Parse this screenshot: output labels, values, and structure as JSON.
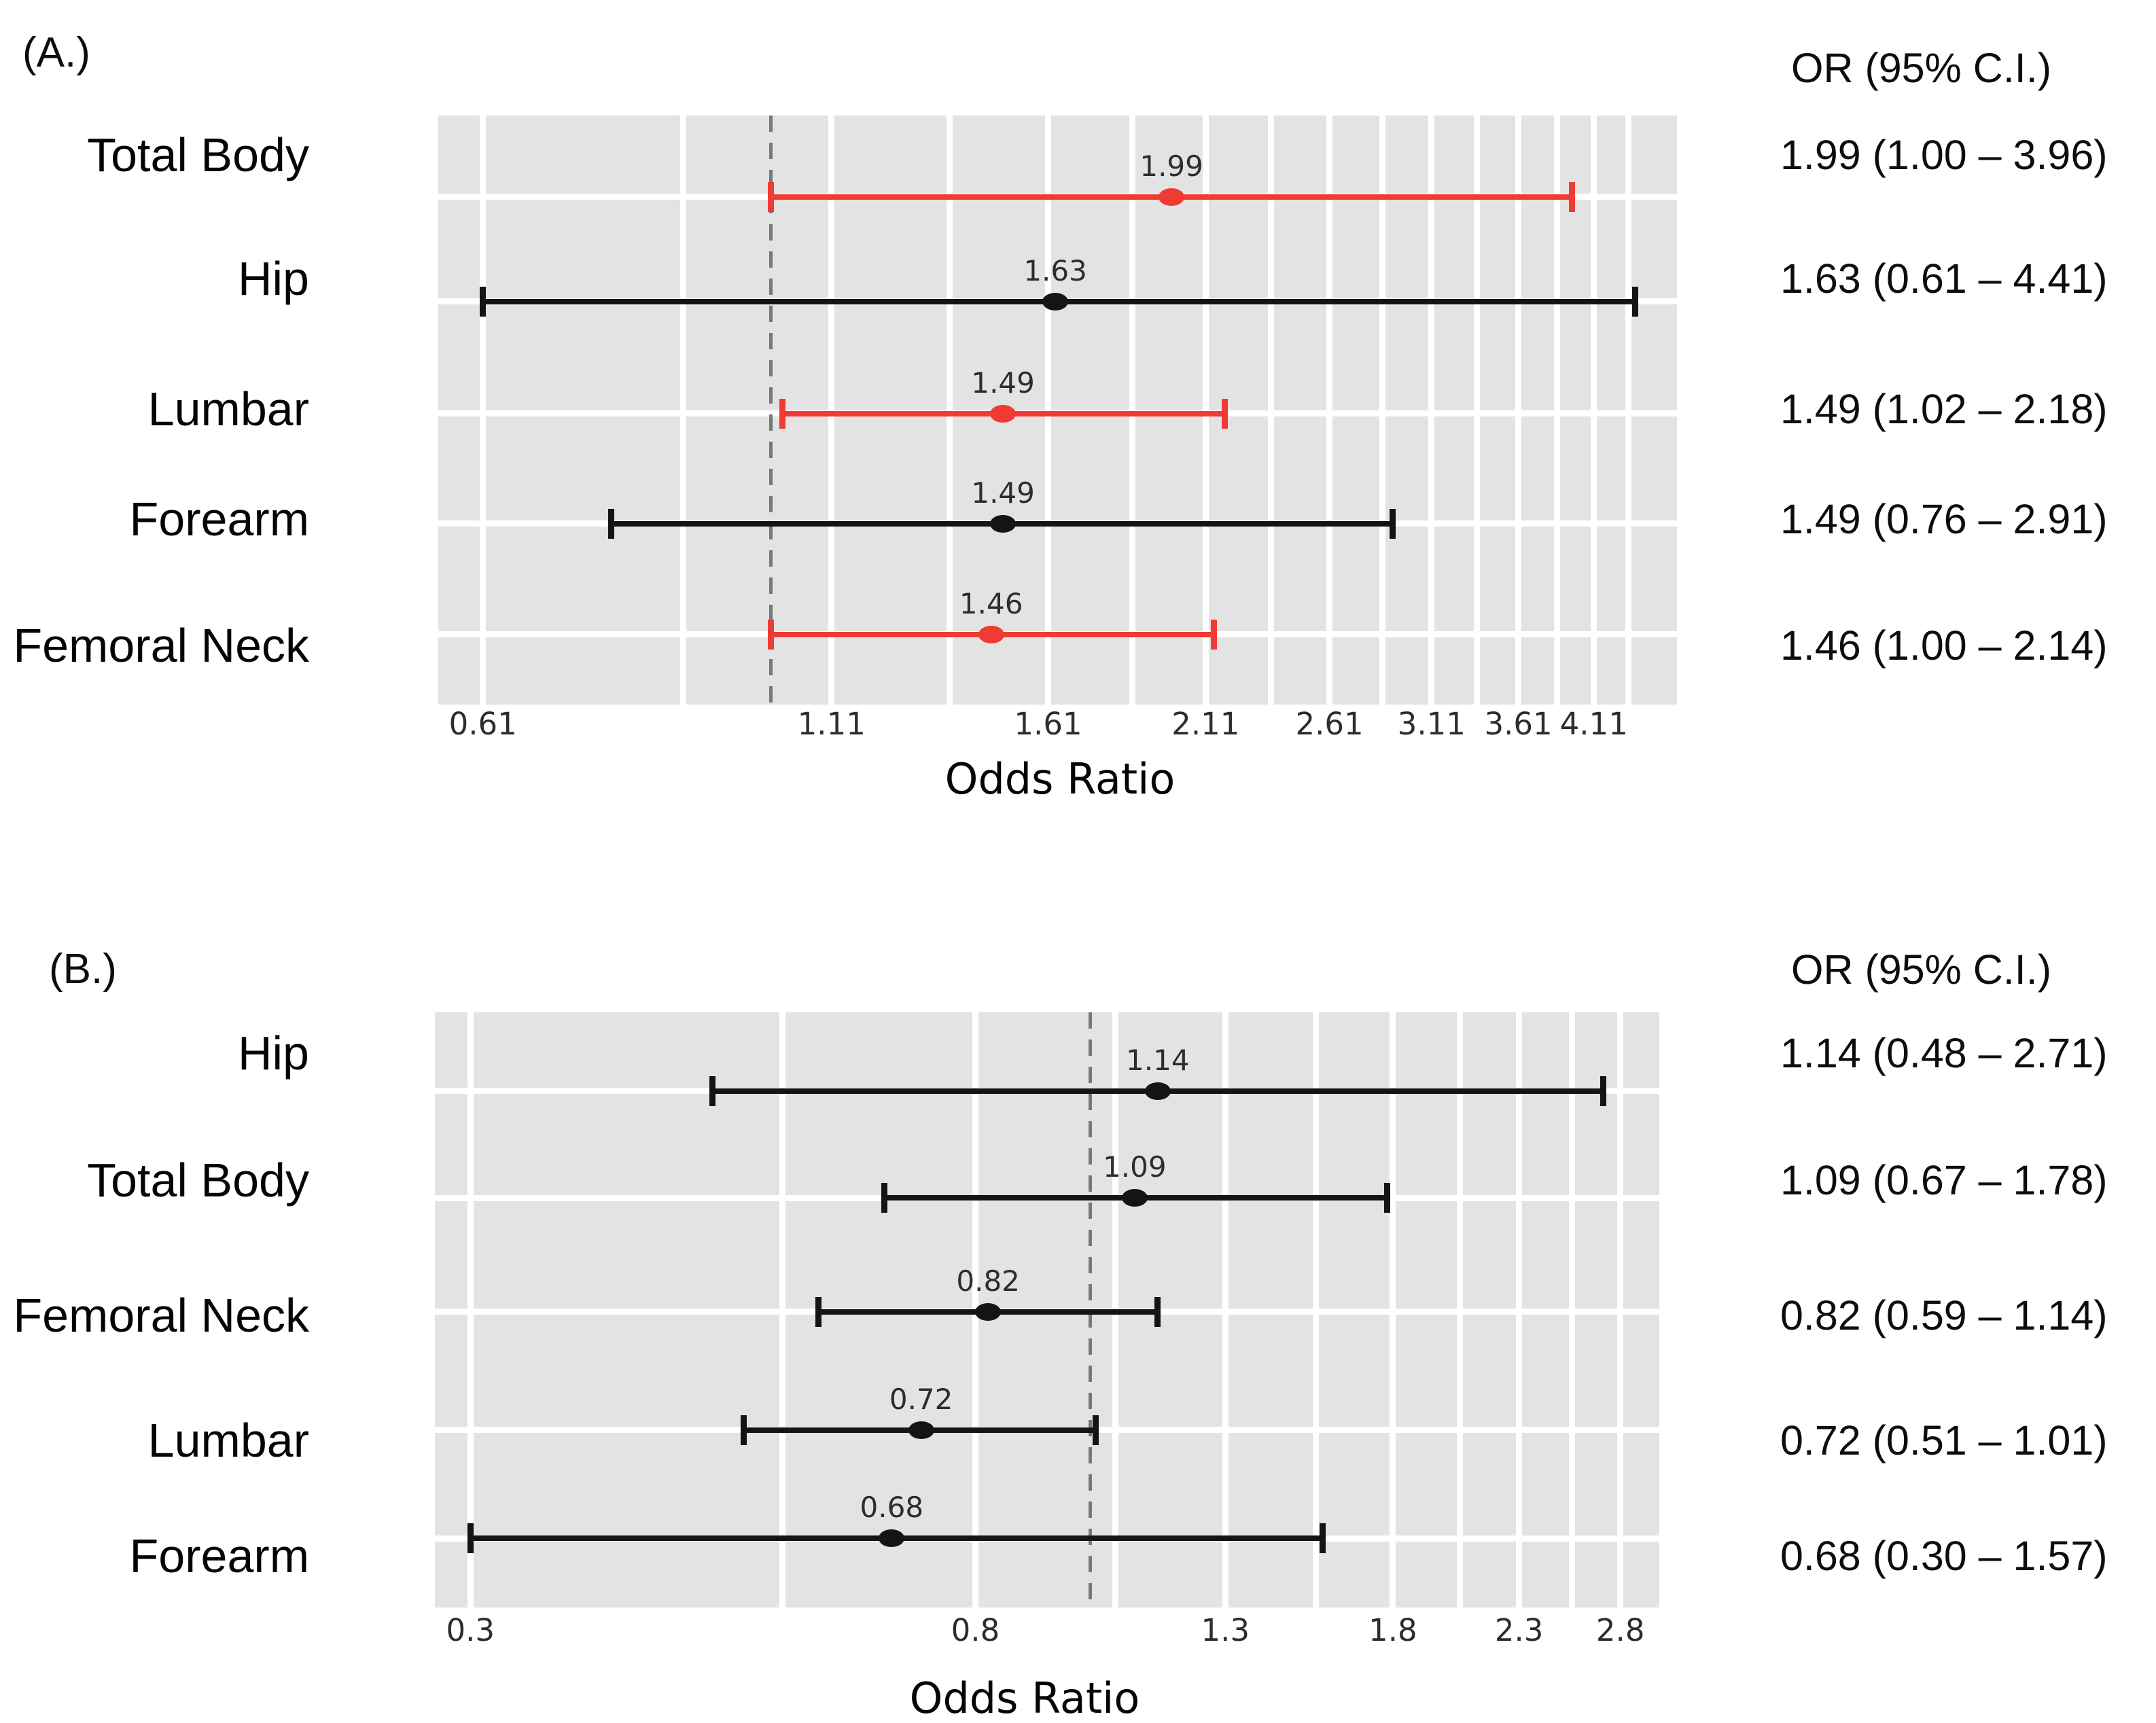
{
  "figure": {
    "background": "#ffffff",
    "plot_background": "#e4e3e3",
    "grid_color": "#ffffff",
    "reference_line_color": "#787878",
    "significant_color": "#ef3b33",
    "default_color": "#141414"
  },
  "chart_data": [
    {
      "type": "scatter",
      "subtype": "forest-plot",
      "panel_label": "(A.)",
      "or_column_header": "OR (95% C.I.)",
      "xlabel": "Odds Ratio",
      "x_scale": "log",
      "xlim": [
        0.565,
        4.74
      ],
      "x_ticks": [
        0.61,
        1.11,
        1.61,
        2.11,
        2.61,
        3.11,
        3.61,
        4.11
      ],
      "x_tick_labels": [
        "0.61",
        "1.11",
        "1.61",
        "2.11",
        "2.61",
        "3.11",
        "3.61",
        "4.11"
      ],
      "minor_grid_step": 0.25,
      "ref_line_x": 1.0,
      "grid": true,
      "legend": "none",
      "rows": [
        {
          "category": "Total Body",
          "or": 1.99,
          "ci_low": 1.0,
          "ci_high": 3.96,
          "or_label": "1.99",
          "or_ci_text": "1.99 (1.00 – 3.96)",
          "color": "#ef3b33"
        },
        {
          "category": "Hip",
          "or": 1.63,
          "ci_low": 0.61,
          "ci_high": 4.41,
          "or_label": "1.63",
          "or_ci_text": "1.63 (0.61 – 4.41)",
          "color": "#141414"
        },
        {
          "category": "Lumbar",
          "or": 1.49,
          "ci_low": 1.02,
          "ci_high": 2.18,
          "or_label": "1.49",
          "or_ci_text": "1.49 (1.02 – 2.18)",
          "color": "#ef3b33"
        },
        {
          "category": "Forearm",
          "or": 1.49,
          "ci_low": 0.76,
          "ci_high": 2.91,
          "or_label": "1.49",
          "or_ci_text": "1.49 (0.76 – 2.91)",
          "color": "#141414"
        },
        {
          "category": "Femoral Neck",
          "or": 1.46,
          "ci_low": 1.0,
          "ci_high": 2.14,
          "or_label": "1.46",
          "or_ci_text": "1.46 (1.00 – 2.14)",
          "color": "#ef3b33"
        }
      ]
    },
    {
      "type": "scatter",
      "subtype": "forest-plot",
      "panel_label": "(B.)",
      "or_column_header": "OR (95% C.I.)",
      "xlabel": "Odds Ratio",
      "x_scale": "log",
      "xlim": [
        0.28,
        3.02
      ],
      "x_ticks": [
        0.3,
        0.8,
        1.3,
        1.8,
        2.3,
        2.8
      ],
      "x_tick_labels": [
        "0.3",
        "0.8",
        "1.3",
        "1.8",
        "2.3",
        "2.8"
      ],
      "minor_grid_step": 0.25,
      "ref_line_x": 1.0,
      "grid": true,
      "legend": "none",
      "rows": [
        {
          "category": "Hip",
          "or": 1.14,
          "ci_low": 0.48,
          "ci_high": 2.71,
          "or_label": "1.14",
          "or_ci_text": "1.14 (0.48 – 2.71)",
          "color": "#141414"
        },
        {
          "category": "Total Body",
          "or": 1.09,
          "ci_low": 0.67,
          "ci_high": 1.78,
          "or_label": "1.09",
          "or_ci_text": "1.09 (0.67 – 1.78)",
          "color": "#141414"
        },
        {
          "category": "Femoral Neck",
          "or": 0.82,
          "ci_low": 0.59,
          "ci_high": 1.14,
          "or_label": "0.82",
          "or_ci_text": "0.82 (0.59 – 1.14)",
          "color": "#141414"
        },
        {
          "category": "Lumbar",
          "or": 0.72,
          "ci_low": 0.51,
          "ci_high": 1.01,
          "or_label": "0.72",
          "or_ci_text": "0.72 (0.51 – 1.01)",
          "color": "#141414"
        },
        {
          "category": "Forearm",
          "or": 0.68,
          "ci_low": 0.3,
          "ci_high": 1.57,
          "or_label": "0.68",
          "or_ci_text": "0.68 (0.30 – 1.57)",
          "color": "#141414"
        }
      ]
    }
  ]
}
